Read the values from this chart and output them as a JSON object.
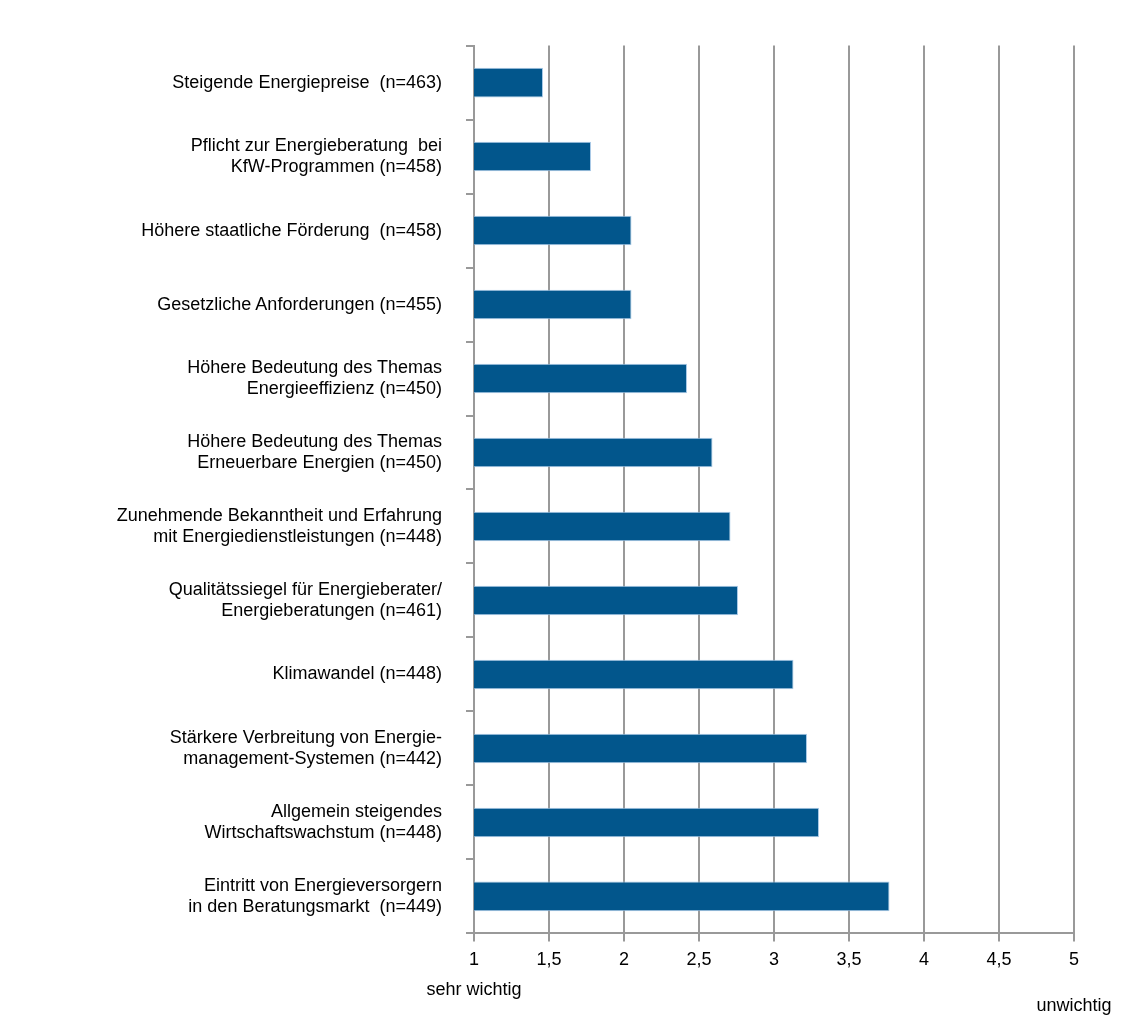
{
  "chart_data": {
    "type": "bar",
    "orientation": "horizontal",
    "categories": [
      "Steigende Energiepreise  (n=463)",
      "Pflicht zur Energieberatung  bei\nKfW-Programmen (n=458)",
      "Höhere staatliche Förderung  (n=458)",
      "Gesetzliche Anforderungen (n=455)",
      "Höhere Bedeutung des Themas\nEnergieeffizienz (n=450)",
      "Höhere Bedeutung des Themas\nErneuerbare Energien (n=450)",
      "Zunehmende Bekanntheit und Erfahrung\nmit Energiedienstleistungen (n=448)",
      "Qualitätssiegel für Energieberater/\nEnergieberatungen (n=461)",
      "Klimawandel (n=448)",
      "Stärkere Verbreitung von Energie-\nmanagement-Systemen (n=442)",
      "Allgemein steigendes\nWirtschaftswachstum (n=448)",
      "Eintritt von Energieversorgern\nin den Beratungsmarkt  (n=449)"
    ],
    "values": [
      1.46,
      1.78,
      2.05,
      2.05,
      2.42,
      2.59,
      2.71,
      2.76,
      3.13,
      3.22,
      3.3,
      3.77
    ],
    "color": "#02568c",
    "xlim": [
      1,
      5
    ],
    "xticks": [
      1,
      {
        "value": 1.5,
        "label": "1,5"
      },
      2,
      {
        "value": 2.5,
        "label": "2,5"
      },
      3,
      {
        "value": 3.5,
        "label": "3,5"
      },
      4,
      {
        "value": 4.5,
        "label": "4,5"
      },
      5
    ],
    "grid": "x",
    "legend": false,
    "annotations": [
      "sehr wichtig",
      "unwichtig"
    ]
  }
}
